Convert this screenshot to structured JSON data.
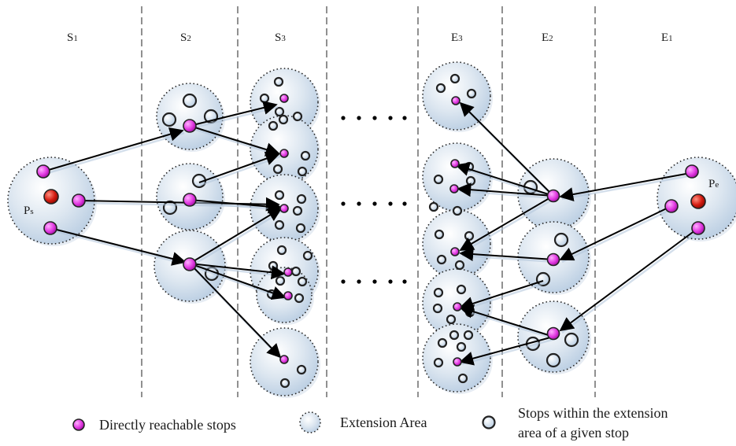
{
  "columns": {
    "s1": {
      "main": "S",
      "sub": "1"
    },
    "s2": {
      "main": "S",
      "sub": "2"
    },
    "s3": {
      "main": "S",
      "sub": "3"
    },
    "e3": {
      "main": "E",
      "sub": "3"
    },
    "e2": {
      "main": "E",
      "sub": "2"
    },
    "e1": {
      "main": "E",
      "sub": "1"
    }
  },
  "points": {
    "start": {
      "main": "P",
      "sub": "s"
    },
    "end": {
      "main": "P",
      "sub": "e"
    }
  },
  "legend": {
    "direct": "Directly reachable stops",
    "extension": "Extension Area",
    "within_line1": "Stops within the extension",
    "within_line2": "area of a given stop"
  },
  "colors": {
    "direct_stop": "#e040e0",
    "endpoint": "#cc1111",
    "extension_fill": "#c8d8ea",
    "other_stop_fill": "#cfe0f0",
    "arrow": "#000000"
  }
}
